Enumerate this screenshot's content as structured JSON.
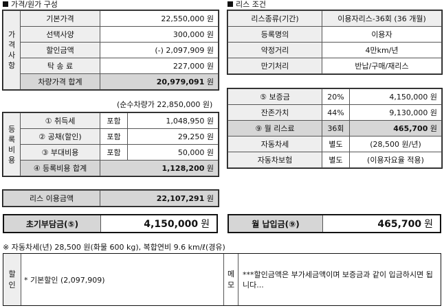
{
  "left": {
    "title": "가격/원가 구성",
    "price": {
      "side_label": [
        "가",
        "격",
        "사",
        "항"
      ],
      "rows": [
        {
          "label": "기본가격",
          "value": "22,550,000 원"
        },
        {
          "label": "선택사양",
          "value": "300,000 원"
        },
        {
          "label": "할인금액",
          "value": "(-) 2,097,909 원"
        },
        {
          "label": "탁 송 료",
          "value": "227,000 원"
        }
      ],
      "total_label": "차량가격 합계",
      "total_value": "20,979,091",
      "total_unit": "원"
    },
    "net_note": "(순수차량가 22,850,000 원)",
    "reg": {
      "side_label": [
        "등",
        "록",
        "비",
        "용"
      ],
      "rows": [
        {
          "label": "① 취득세",
          "tag": "포함",
          "value": "1,048,950 원"
        },
        {
          "label": "② 공채(할인)",
          "tag": "포함",
          "value": "29,250 원"
        },
        {
          "label": "③ 부대비용",
          "tag": "포함",
          "value": "50,000 원"
        }
      ],
      "total_label": "④ 등록비용 합계",
      "total_value": "1,128,200",
      "total_unit": "원"
    },
    "lease_amount": {
      "label": "리스 이용금액",
      "value": "22,107,291",
      "unit": "원"
    },
    "initial": {
      "label": "초기부담금(⑤)",
      "value": "4,150,000",
      "unit": "원"
    }
  },
  "right": {
    "title": "리스 조건",
    "cond": [
      {
        "label": "리스종류(기간)",
        "value": "이용자리스-36회 (36 개월)"
      },
      {
        "label": "등록명의",
        "value": "이용자"
      },
      {
        "label": "약정거리",
        "value": "4만km/년"
      },
      {
        "label": "만기처리",
        "value": "반납/구매/재리스"
      }
    ],
    "pay": [
      {
        "label": "⑤ 보증금",
        "mid": "20%",
        "value": "4,150,000 원",
        "bold": false
      },
      {
        "label": "잔존가치",
        "mid": "44%",
        "value": "9,130,000 원",
        "bold": false
      },
      {
        "label": "⑨ 월 리스료",
        "mid": "36회",
        "value": "465,700",
        "unit": "원",
        "bold": true
      },
      {
        "label": "자동차세",
        "mid": "별도",
        "value": "(28,500 원/년)",
        "bold": false
      },
      {
        "label": "자동차보험",
        "mid": "별도",
        "value": "(이용자요율 적용)",
        "bold": false
      }
    ],
    "monthly": {
      "label": "월 납입금(⑨)",
      "value": "465,700",
      "unit": "원"
    }
  },
  "footnote": "※ 자동차세(년) 28,500 원(화물 600 kg), 복합연비 9.6 km/ℓ(경유)",
  "discount": {
    "side": [
      "할",
      "인"
    ],
    "text": "* 기본할인 (2,097,909)"
  },
  "memo": {
    "side": [
      "메",
      "모"
    ],
    "text": "***할인금액은 부가세금액이며 보증금과 같이 입금하시면 됩니다..."
  }
}
